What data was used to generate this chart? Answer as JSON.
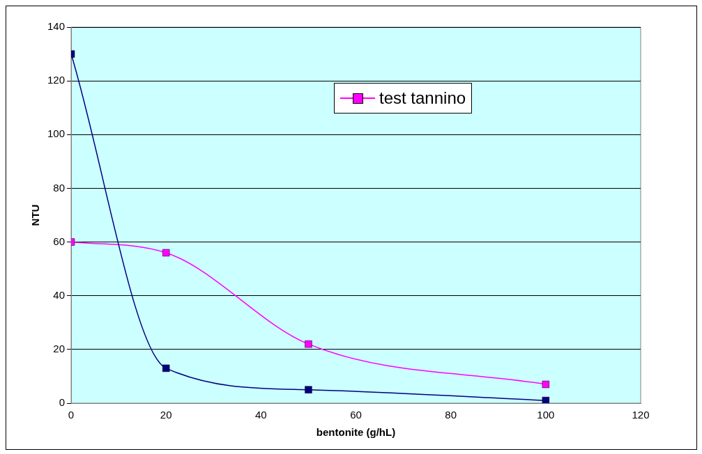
{
  "chart_data": {
    "type": "line",
    "xlabel": "bentonite (g/hL)",
    "ylabel": "NTU",
    "xlim": [
      0,
      120
    ],
    "xticks": [
      0,
      20,
      40,
      60,
      80,
      100,
      120
    ],
    "ylim": [
      0,
      140
    ],
    "yticks": [
      0,
      20,
      40,
      60,
      80,
      100,
      120,
      140
    ],
    "grid": "y",
    "legend": "top right",
    "marker": "square",
    "line_style": "solid",
    "series": [
      {
        "color": "#000080",
        "x": [
          0,
          20,
          50,
          100
        ],
        "values": [
          130,
          13,
          5,
          1
        ]
      },
      {
        "name": "test tannino",
        "color": "#ff00ff",
        "x": [
          0,
          20,
          50,
          100
        ],
        "values": [
          60,
          56,
          22,
          7
        ]
      }
    ]
  }
}
